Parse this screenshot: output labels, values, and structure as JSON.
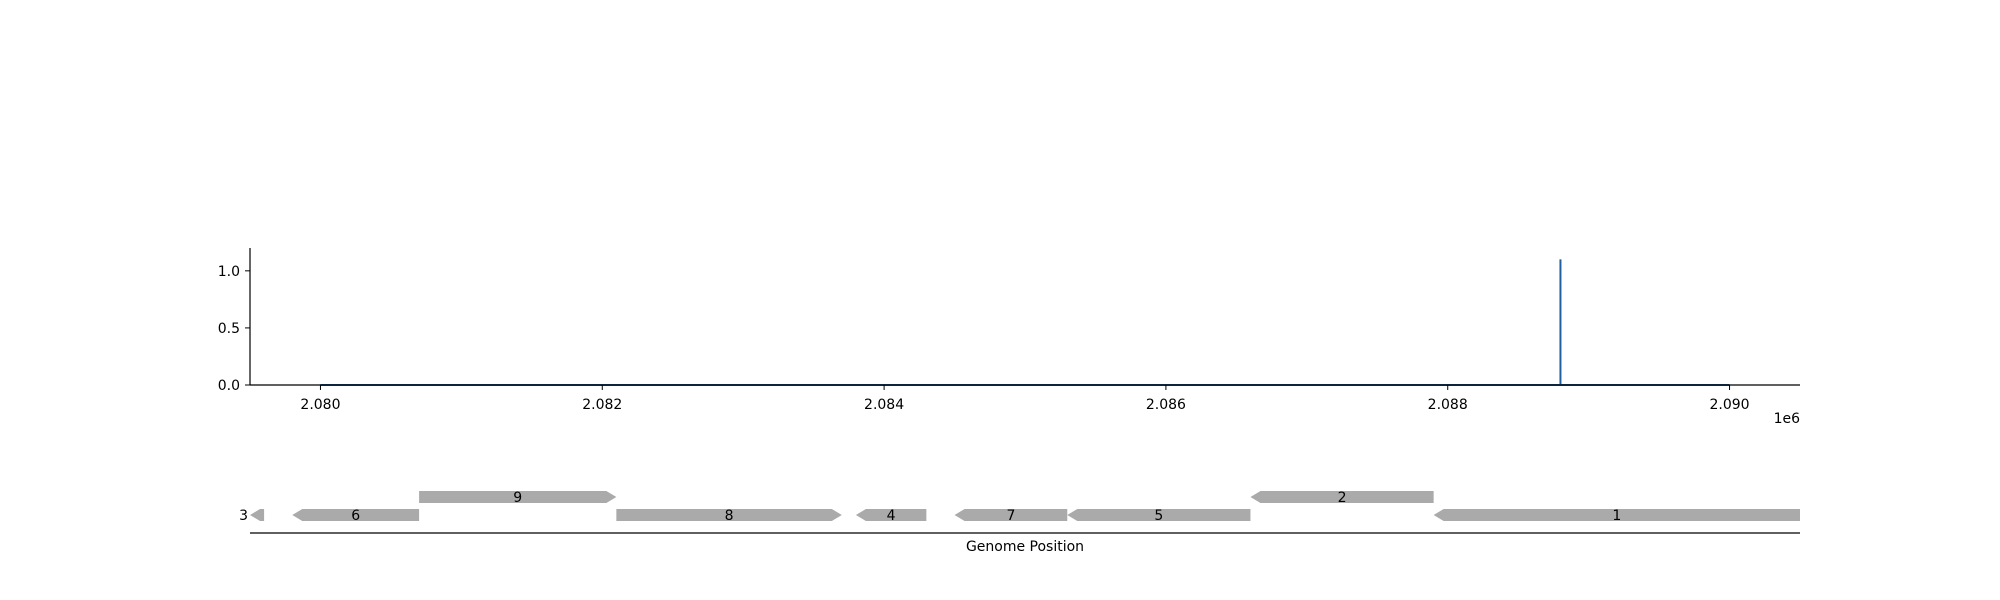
{
  "chart_data": [
    {
      "type": "line",
      "title": "",
      "xlabel": "",
      "ylabel": "",
      "x_offset_label": "1e6",
      "xlim": [
        2079500,
        2090500
      ],
      "ylim": [
        0,
        1.2
      ],
      "x_ticks": [
        2080000,
        2082000,
        2084000,
        2086000,
        2088000,
        2090000
      ],
      "x_tick_labels": [
        "2.080",
        "2.082",
        "2.084",
        "2.086",
        "2.088",
        "2.090"
      ],
      "y_ticks": [
        0.0,
        0.5,
        1.0
      ],
      "y_tick_labels": [
        "0.0",
        "0.5",
        "1.0"
      ],
      "grid": false,
      "series": [
        {
          "color": "#1f5f9f",
          "x": [
            2080000,
            2088800,
            2088800,
            2088800,
            2090000
          ],
          "y": [
            0.0,
            0.0,
            1.1,
            0.0,
            0.0
          ]
        }
      ]
    },
    {
      "type": "gene-track",
      "xlabel": "Genome Position",
      "xlim": [
        2079500,
        2090500
      ],
      "gene_color": "#aaaaaa",
      "genes": [
        {
          "label": "3",
          "start": 2079500,
          "end": 2079600,
          "strand": "-",
          "row": 0,
          "label_position": "left"
        },
        {
          "label": "6",
          "start": 2079800,
          "end": 2080700,
          "strand": "-",
          "row": 0,
          "label_position": "center"
        },
        {
          "label": "9",
          "start": 2080700,
          "end": 2082100,
          "strand": "+",
          "row": 1,
          "label_position": "center"
        },
        {
          "label": "8",
          "start": 2082100,
          "end": 2083700,
          "strand": "+",
          "row": 0,
          "label_position": "center"
        },
        {
          "label": "4",
          "start": 2083800,
          "end": 2084300,
          "strand": "-",
          "row": 0,
          "label_position": "center"
        },
        {
          "label": "7",
          "start": 2084500,
          "end": 2085300,
          "strand": "-",
          "row": 0,
          "label_position": "center"
        },
        {
          "label": "5",
          "start": 2085300,
          "end": 2086600,
          "strand": "-",
          "row": 0,
          "label_position": "center"
        },
        {
          "label": "2",
          "start": 2086600,
          "end": 2087900,
          "strand": "-",
          "row": 1,
          "label_position": "center"
        },
        {
          "label": "1",
          "start": 2087900,
          "end": 2090500,
          "strand": "-",
          "row": 0,
          "label_position": "center"
        }
      ]
    }
  ]
}
